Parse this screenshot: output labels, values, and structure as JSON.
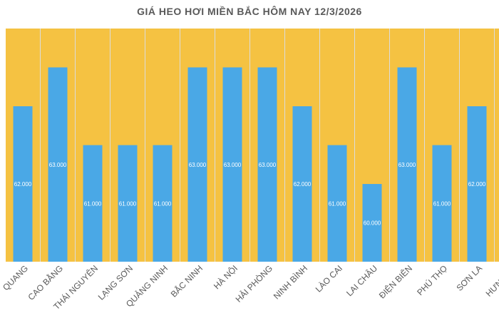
{
  "chart_data": {
    "type": "bar",
    "title": "GIÁ HEO HƠI MIỀN BẮC HÔM NAY 12/3/2026",
    "xlabel": "",
    "ylabel": "",
    "categories": [
      "QUANG",
      "CAO BẰNG",
      "THÁI NGUYÊN",
      "LẠNG SƠN",
      "QUẢNG NINH",
      "BẮC NINH",
      "HÀ NỘI",
      "HẢI PHÒNG",
      "NINH BÌNH",
      "LÀO CAI",
      "LAI CHÂU",
      "ĐIỆN BIÊN",
      "PHÚ THỌ",
      "SƠN LA",
      "HƯNG YÊ"
    ],
    "values": [
      62000,
      63000,
      61000,
      61000,
      61000,
      63000,
      63000,
      63000,
      62000,
      61000,
      60000,
      63000,
      61000,
      62000,
      null
    ],
    "value_labels": [
      "62.000",
      "63.000",
      "61.000",
      "61.000",
      "61.000",
      "63.000",
      "63.000",
      "63.000",
      "62.000",
      "61.000",
      "60.000",
      "63.000",
      "61.000",
      "62.000",
      ""
    ],
    "ylim": [
      58000,
      64000
    ],
    "grid": false,
    "legend": "none",
    "colors": {
      "bar": "#4aa8e6",
      "plot_background": "#f5c242",
      "divider": "#dcdcdc",
      "label": "#ffffff",
      "tick": "#595959"
    }
  }
}
